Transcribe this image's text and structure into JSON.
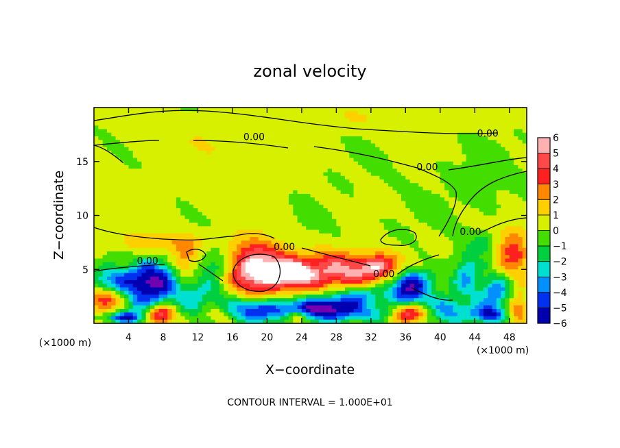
{
  "chart_data": {
    "type": "heatmap",
    "title": "zonal velocity",
    "xlabel": "X−coordinate",
    "ylabel": "Z−coordinate",
    "x_unit_left": "(×1000 m)",
    "x_unit_right": "(×1000 m)",
    "xlim": [
      0,
      50
    ],
    "ylim": [
      0,
      20
    ],
    "xticks": [
      4,
      8,
      12,
      16,
      20,
      24,
      28,
      32,
      36,
      40,
      44,
      48
    ],
    "xtick_labels": [
      "4",
      "8",
      "12",
      "16",
      "20",
      "24",
      "28",
      "32",
      "36",
      "40",
      "44",
      "48"
    ],
    "yticks": [
      5,
      10,
      15
    ],
    "ytick_labels": [
      "5",
      "10",
      "15"
    ],
    "colorbar": {
      "levels": [
        6,
        5,
        4,
        3,
        2,
        1,
        0,
        -1,
        -2,
        -3,
        -4,
        -5,
        -6
      ],
      "labels": [
        "6",
        "5",
        "4",
        "3",
        "2",
        "1",
        "0",
        "−1",
        "−2",
        "−3",
        "−4",
        "−5",
        "−6"
      ],
      "colors": [
        "#ffb0b0",
        "#ff4848",
        "#ff2020",
        "#ff8800",
        "#ffd000",
        "#d6f000",
        "#44dd00",
        "#00d040",
        "#00e0d0",
        "#0090ff",
        "#0030f0",
        "#0000b0",
        "#7000b0"
      ],
      "over_color": "#ffffff"
    },
    "contour_labels": [
      {
        "text": "0.00",
        "x": 18.5,
        "y": 17.0
      },
      {
        "text": "0.00",
        "x": 45.5,
        "y": 17.3
      },
      {
        "text": "0.00",
        "x": 38.5,
        "y": 14.2
      },
      {
        "text": "0.00",
        "x": 6.2,
        "y": 5.5
      },
      {
        "text": "0.00",
        "x": 22.0,
        "y": 6.8
      },
      {
        "text": "0.00",
        "x": 33.5,
        "y": 4.3
      },
      {
        "text": "0.00",
        "x": 43.5,
        "y": 8.2
      }
    ],
    "blobs": [
      {
        "x": 3.0,
        "y": 11.0,
        "rx": 8.0,
        "ry": 3.0,
        "v": 0.6
      },
      {
        "x": 14.0,
        "y": 16.5,
        "rx": 10.0,
        "ry": 2.0,
        "v": 0.7
      },
      {
        "x": 18.0,
        "y": 13.0,
        "rx": 6.0,
        "ry": 2.5,
        "v": 0.5
      },
      {
        "x": 45.0,
        "y": 12.5,
        "rx": 4.0,
        "ry": 3.0,
        "v": -0.4
      },
      {
        "x": 30.0,
        "y": 19.0,
        "rx": 20.0,
        "ry": 1.2,
        "v": 0.8
      },
      {
        "x": 18.8,
        "y": 5.0,
        "rx": 3.5,
        "ry": 2.6,
        "v": 6.5
      },
      {
        "x": 28.0,
        "y": 4.8,
        "rx": 5.5,
        "ry": 1.8,
        "v": 5.0
      },
      {
        "x": 23.0,
        "y": 4.6,
        "rx": 2.2,
        "ry": 1.2,
        "v": 4.0
      },
      {
        "x": 33.5,
        "y": 5.2,
        "rx": 3.0,
        "ry": 1.2,
        "v": 4.0
      },
      {
        "x": 31.0,
        "y": 2.6,
        "rx": 3.0,
        "ry": 1.0,
        "v": -3.0
      },
      {
        "x": 36.5,
        "y": 3.5,
        "rx": 2.5,
        "ry": 1.8,
        "v": -6.5
      },
      {
        "x": 7.0,
        "y": 4.0,
        "rx": 2.5,
        "ry": 1.8,
        "v": -6.0
      },
      {
        "x": 2.5,
        "y": 4.0,
        "rx": 2.5,
        "ry": 1.2,
        "v": -4.0
      },
      {
        "x": 1.5,
        "y": 2.2,
        "rx": 2.0,
        "ry": 1.0,
        "v": 4.5
      },
      {
        "x": 5.0,
        "y": 2.0,
        "rx": 2.2,
        "ry": 1.5,
        "v": -3.0
      },
      {
        "x": 12.0,
        "y": 2.5,
        "rx": 3.5,
        "ry": 1.8,
        "v": -2.5
      },
      {
        "x": 10.5,
        "y": 5.8,
        "rx": 1.5,
        "ry": 1.5,
        "v": 2.5
      },
      {
        "x": 14.0,
        "y": 5.5,
        "rx": 1.8,
        "ry": 1.5,
        "v": -2.5
      },
      {
        "x": 18.5,
        "y": 1.2,
        "rx": 3.0,
        "ry": 1.2,
        "v": -5.0
      },
      {
        "x": 24.0,
        "y": 1.3,
        "rx": 4.0,
        "ry": 1.0,
        "v": -4.0
      },
      {
        "x": 28.0,
        "y": 1.4,
        "rx": 3.5,
        "ry": 1.2,
        "v": -5.0
      },
      {
        "x": 33.0,
        "y": 0.8,
        "rx": 3.0,
        "ry": 0.8,
        "v": -2.0
      },
      {
        "x": 36.5,
        "y": 0.9,
        "rx": 2.2,
        "ry": 0.9,
        "v": 5.5
      },
      {
        "x": 41.0,
        "y": 1.2,
        "rx": 2.5,
        "ry": 1.3,
        "v": -3.5
      },
      {
        "x": 43.0,
        "y": 4.5,
        "rx": 1.5,
        "ry": 2.0,
        "v": -3.0
      },
      {
        "x": 46.5,
        "y": 2.8,
        "rx": 2.0,
        "ry": 1.5,
        "v": -4.0
      },
      {
        "x": 48.5,
        "y": 6.5,
        "rx": 1.8,
        "ry": 2.5,
        "v": 3.5
      },
      {
        "x": 45.0,
        "y": 7.5,
        "rx": 1.5,
        "ry": 1.0,
        "v": -1.5
      },
      {
        "x": 7.8,
        "y": 0.8,
        "rx": 1.8,
        "ry": 0.9,
        "v": 5.0
      },
      {
        "x": 3.5,
        "y": 0.5,
        "rx": 2.2,
        "ry": 0.5,
        "v": -5.0
      },
      {
        "x": 14.0,
        "y": 0.8,
        "rx": 1.5,
        "ry": 0.8,
        "v": 1.5
      },
      {
        "x": 23.5,
        "y": 0.6,
        "rx": 1.2,
        "ry": 0.6,
        "v": 4.0
      },
      {
        "x": 45.5,
        "y": 0.8,
        "rx": 2.0,
        "ry": 0.8,
        "v": -5.0
      },
      {
        "x": 49.0,
        "y": 1.5,
        "rx": 1.2,
        "ry": 1.5,
        "v": 3.0
      },
      {
        "x": 22.0,
        "y": 8.0,
        "rx": 4.0,
        "ry": 1.5,
        "v": -0.3
      },
      {
        "x": 8.0,
        "y": 7.5,
        "rx": 5.0,
        "ry": 1.0,
        "v": 1.8
      }
    ]
  },
  "contour_interval_text": "CONTOUR INTERVAL = 1.000E+01"
}
